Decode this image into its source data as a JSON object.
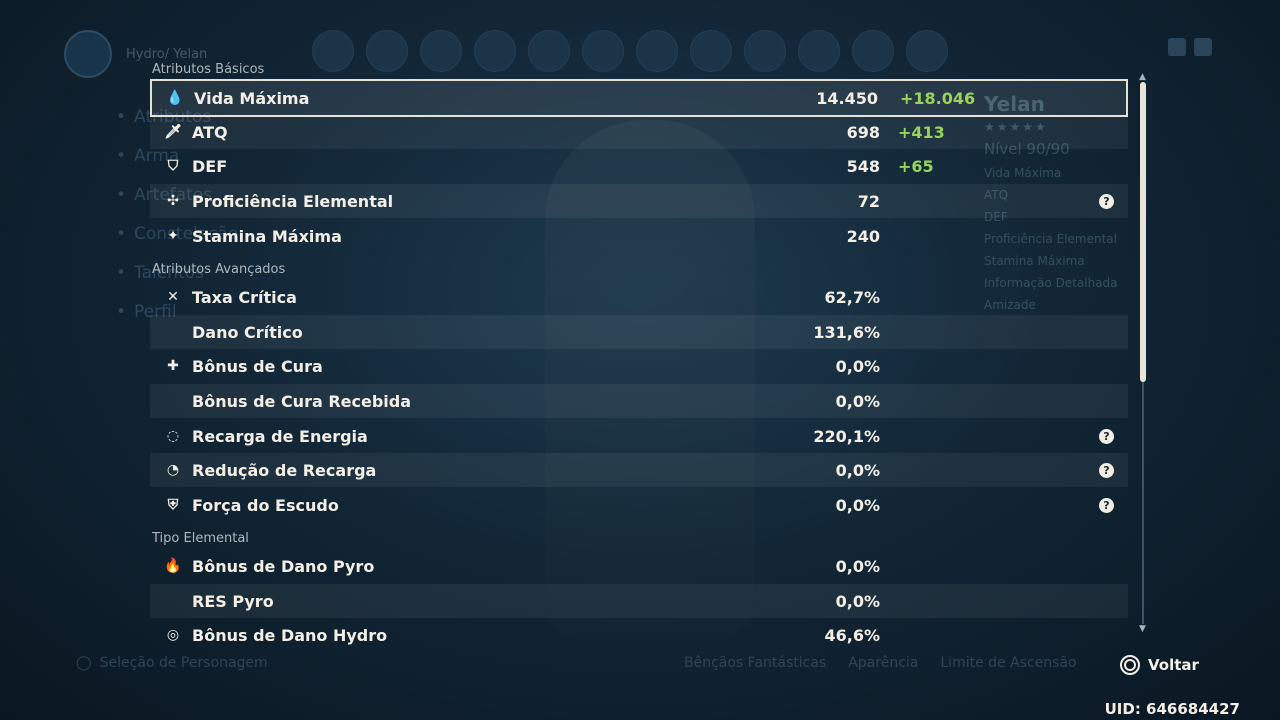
{
  "background": {
    "character_title": "Hydro/ Yelan",
    "menu_items": [
      "Atributos",
      "Arma",
      "Artefatos",
      "Constelação",
      "Talentos",
      "Perfil"
    ],
    "right_panel": {
      "name": "Yelan",
      "stars": "★★★★★",
      "level": "Nível 90/90",
      "lines": [
        "Vida Máxima",
        "ATQ",
        "DEF",
        "Proficiência Elemental",
        "Stamina Máxima",
        "Informação Detalhada",
        "Amizade"
      ]
    },
    "bottom_left": "Seleção de Personagem",
    "bottom_right": [
      "Bênçãos Fantásticas",
      "Aparência",
      "Limite de Ascensão"
    ]
  },
  "sections": {
    "basic": "Atributos Básicos",
    "advanced": "Atributos Avançados",
    "elemental": "Tipo Elemental"
  },
  "basic_stats": [
    {
      "icon": "hp-drop-icon",
      "glyph": "💧",
      "label": "Vida Máxima",
      "value": "14.450",
      "bonus": "+18.046",
      "help": false
    },
    {
      "icon": "atk-sword-icon",
      "glyph": "🗡",
      "label": "ATQ",
      "value": "698",
      "bonus": "+413",
      "help": false
    },
    {
      "icon": "def-shield-icon",
      "glyph": "⛉",
      "label": "DEF",
      "value": "548",
      "bonus": "+65",
      "help": false
    },
    {
      "icon": "elemental-mastery-icon",
      "glyph": "✣",
      "label": "Proficiência Elemental",
      "value": "72",
      "bonus": "",
      "help": true
    },
    {
      "icon": "stamina-icon",
      "glyph": "✦",
      "label": "Stamina Máxima",
      "value": "240",
      "bonus": "",
      "help": false
    }
  ],
  "advanced_stats": [
    {
      "icon": "crit-rate-icon",
      "glyph": "✕",
      "label": "Taxa Crítica",
      "value": "62,7%",
      "help": false
    },
    {
      "icon": "",
      "glyph": "",
      "label": "Dano Crítico",
      "value": "131,6%",
      "help": false
    },
    {
      "icon": "healing-bonus-icon",
      "glyph": "✚",
      "label": "Bônus de Cura",
      "value": "0,0%",
      "help": false
    },
    {
      "icon": "",
      "glyph": "",
      "label": "Bônus de Cura Recebida",
      "value": "0,0%",
      "help": false
    },
    {
      "icon": "energy-recharge-icon",
      "glyph": "◌",
      "label": "Recarga de Energia",
      "value": "220,1%",
      "help": true
    },
    {
      "icon": "cd-reduction-icon",
      "glyph": "◔",
      "label": "Redução de Recarga",
      "value": "0,0%",
      "help": true
    },
    {
      "icon": "shield-strength-icon",
      "glyph": "⛨",
      "label": "Força do Escudo",
      "value": "0,0%",
      "help": true
    }
  ],
  "elemental_stats": [
    {
      "icon": "pyro-icon",
      "glyph": "🔥",
      "label": "Bônus de Dano Pyro",
      "value": "0,0%",
      "help": false
    },
    {
      "icon": "",
      "glyph": "",
      "label": "RES Pyro",
      "value": "0,0%",
      "help": false
    },
    {
      "icon": "hydro-icon",
      "glyph": "◎",
      "label": "Bônus de Dano Hydro",
      "value": "46,6%",
      "help": false
    }
  ],
  "help_glyph": "?",
  "footer": {
    "back_label": "Voltar",
    "uid": "UID: 646684427"
  },
  "colors": {
    "bonus_green": "#9ad35a",
    "text": "#f3efe6",
    "selected_border": "#e6e1d6"
  }
}
